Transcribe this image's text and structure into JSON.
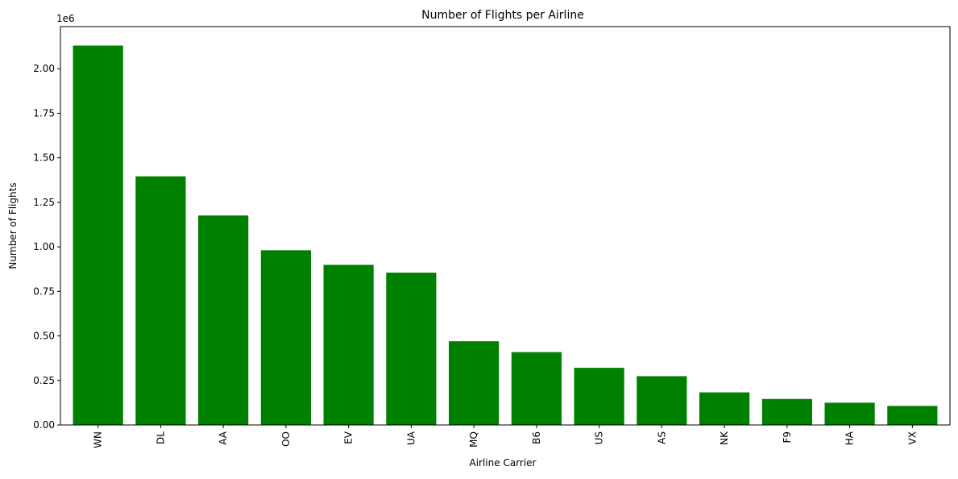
{
  "chart_data": {
    "type": "bar",
    "title": "Number of Flights per Airline",
    "xlabel": "Airline Carrier",
    "ylabel": "Number of Flights",
    "offset_label": "1e6",
    "categories": [
      "WN",
      "DL",
      "AA",
      "OO",
      "EV",
      "UA",
      "MQ",
      "B6",
      "US",
      "AS",
      "NK",
      "F9",
      "HA",
      "VX"
    ],
    "values": [
      2130000,
      1396000,
      1176000,
      981000,
      899000,
      855000,
      470000,
      409000,
      321000,
      274000,
      183000,
      146000,
      125000,
      107000
    ],
    "ylim": [
      0,
      2236500
    ],
    "yticks": [
      0,
      250000,
      500000,
      750000,
      1000000,
      1250000,
      1500000,
      1750000,
      2000000
    ],
    "ytick_labels": [
      "0.00",
      "0.25",
      "0.50",
      "0.75",
      "1.00",
      "1.25",
      "1.50",
      "1.75",
      "2.00"
    ],
    "bar_color": "#008000",
    "grid": false,
    "legend": false
  }
}
